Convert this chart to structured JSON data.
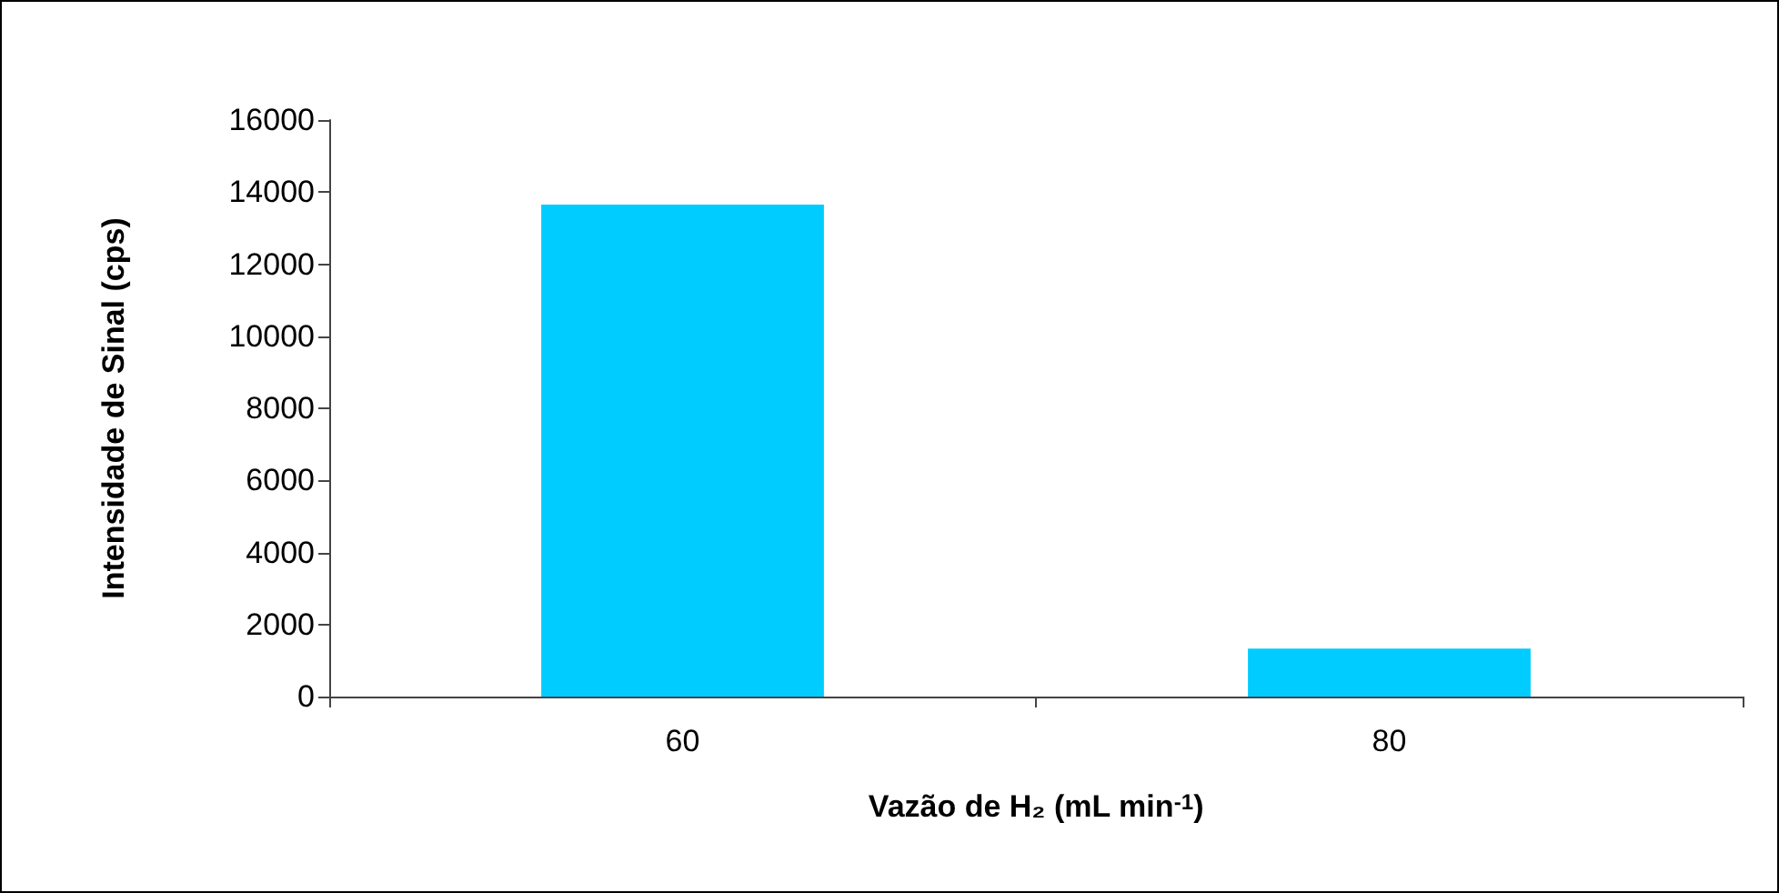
{
  "chart_data": {
    "type": "bar",
    "categories": [
      "60",
      "80"
    ],
    "values": [
      13650,
      1330
    ],
    "color": "#00ccff",
    "xlabel": "Vazão de H₂ (mL min$^{-1}$)",
    "ylabel": "Intensidade de Sinal (cps)",
    "ylim": [
      0,
      16000
    ],
    "yticks": [
      0,
      2000,
      4000,
      6000,
      8000,
      10000,
      12000,
      14000,
      16000
    ],
    "grid": false
  }
}
